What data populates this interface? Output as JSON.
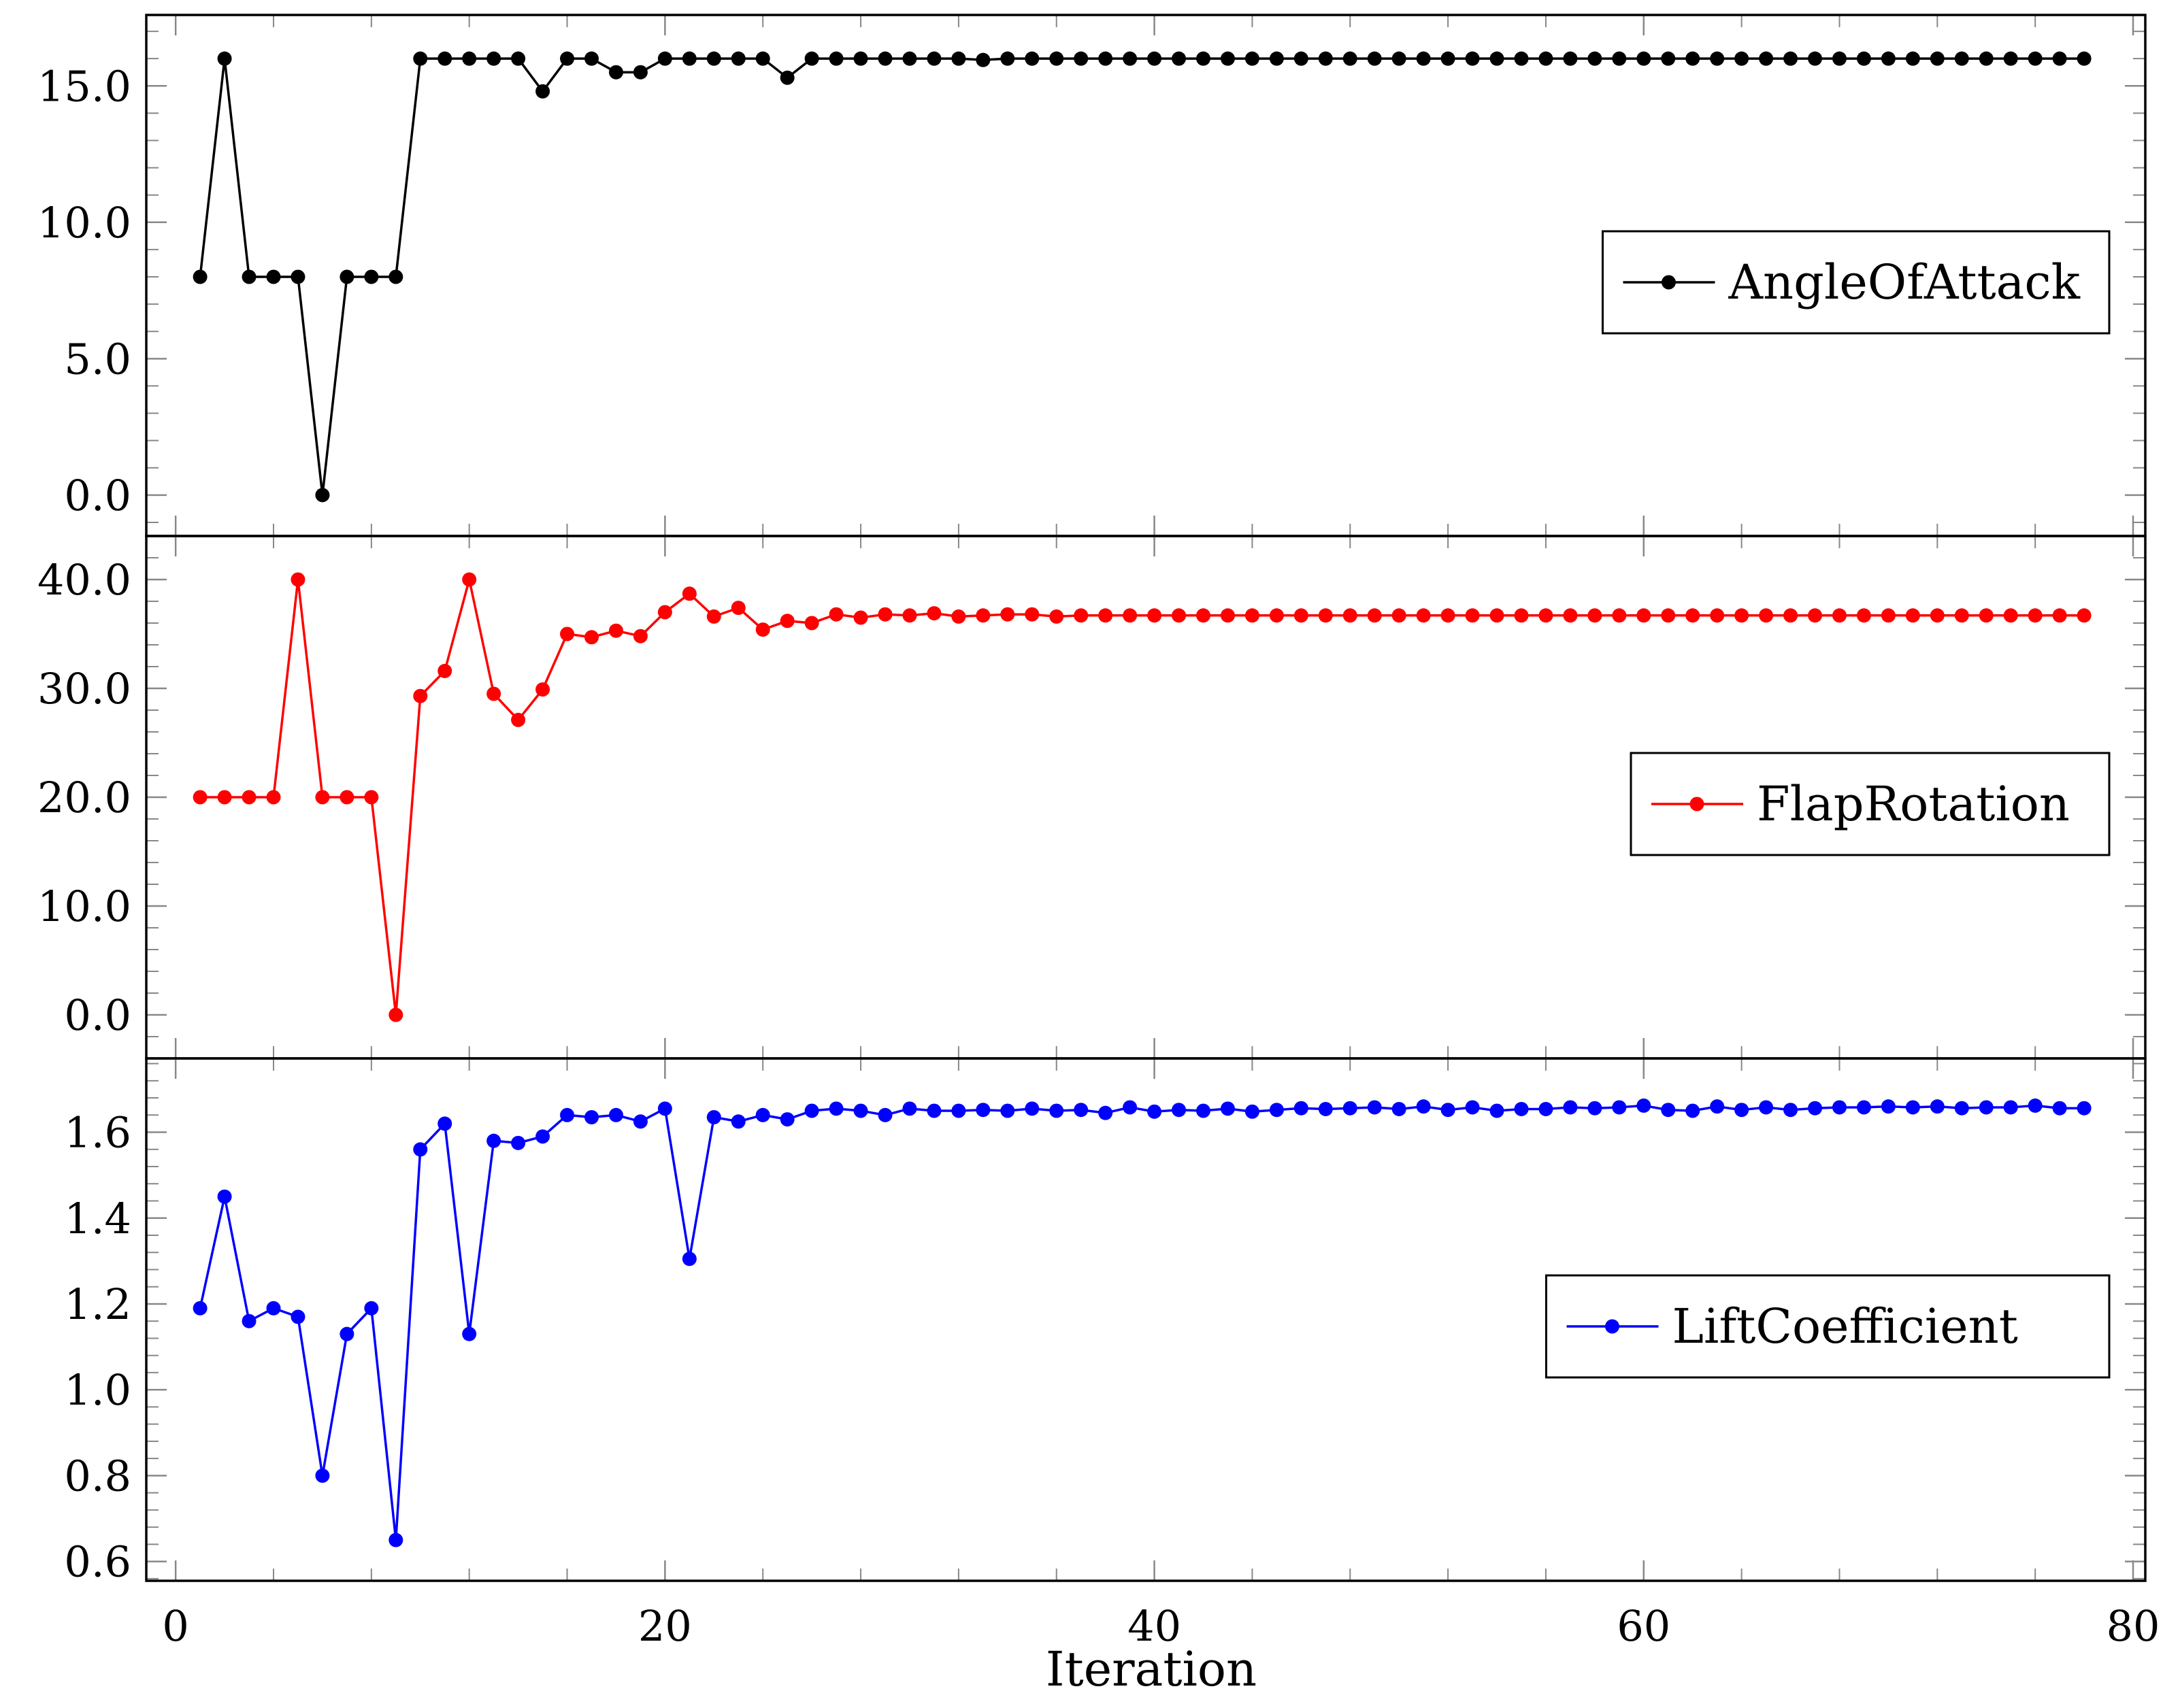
{
  "chart_data": {
    "type": "line",
    "xlabel": "Iteration",
    "xlim": [
      -1.2,
      80.5
    ],
    "xticks": [
      0,
      20,
      40,
      60,
      80
    ],
    "x": [
      1,
      2,
      3,
      4,
      5,
      6,
      7,
      8,
      9,
      10,
      11,
      12,
      13,
      14,
      15,
      16,
      17,
      18,
      19,
      20,
      21,
      22,
      23,
      24,
      25,
      26,
      27,
      28,
      29,
      30,
      31,
      32,
      33,
      34,
      35,
      36,
      37,
      38,
      39,
      40,
      41,
      42,
      43,
      44,
      45,
      46,
      47,
      48,
      49,
      50,
      51,
      52,
      53,
      54,
      55,
      56,
      57,
      58,
      59,
      60,
      61,
      62,
      63,
      64,
      65,
      66,
      67,
      68,
      69,
      70,
      71,
      72,
      73,
      74,
      75,
      76,
      77,
      78
    ],
    "grid": false,
    "panels": [
      {
        "series": [
          {
            "name": "AngleOfAttack",
            "color": "#000000",
            "values": [
              8,
              16,
              8,
              8,
              8,
              0,
              8,
              8,
              8,
              16,
              16,
              16,
              16,
              16,
              14.8,
              16,
              16,
              15.5,
              15.5,
              16,
              16,
              16,
              16,
              16,
              15.3,
              16,
              16,
              16,
              16,
              16,
              16,
              16,
              15.95,
              16,
              16,
              16,
              16,
              16,
              16,
              16,
              16,
              16,
              16,
              16,
              16,
              16,
              16,
              16,
              16,
              16,
              16,
              16,
              16,
              16,
              16,
              16,
              16,
              16,
              16,
              16,
              16,
              16,
              16,
              16,
              16,
              16,
              16,
              16,
              16,
              16,
              16,
              16,
              16,
              16,
              16,
              16,
              16,
              16
            ]
          }
        ],
        "ylim": [
          -1.5,
          17.6
        ],
        "yticks": [
          0,
          5,
          10,
          15
        ],
        "ytick_labels": [
          "0.0",
          "5.0",
          "10.0",
          "15.0"
        ],
        "legend_position": "right"
      },
      {
        "series": [
          {
            "name": "FlapRotation",
            "color": "#ff0000",
            "values": [
              20,
              20,
              20,
              20,
              40,
              20,
              20,
              20,
              0,
              29.3,
              31.6,
              40,
              29.5,
              27.1,
              29.9,
              35,
              34.7,
              35.3,
              34.8,
              37,
              38.7,
              36.6,
              37.4,
              35.4,
              36.2,
              36,
              36.8,
              36.5,
              36.8,
              36.7,
              36.9,
              36.6,
              36.7,
              36.8,
              36.8,
              36.6,
              36.7,
              36.7,
              36.7,
              36.7,
              36.7,
              36.7,
              36.7,
              36.7,
              36.7,
              36.7,
              36.7,
              36.7,
              36.7,
              36.7,
              36.7,
              36.7,
              36.7,
              36.7,
              36.7,
              36.7,
              36.7,
              36.7,
              36.7,
              36.7,
              36.7,
              36.7,
              36.7,
              36.7,
              36.7,
              36.7,
              36.7,
              36.7,
              36.7,
              36.7,
              36.7,
              36.7,
              36.7,
              36.7,
              36.7,
              36.7,
              36.7,
              36.7
            ]
          }
        ],
        "ylim": [
          -4,
          44
        ],
        "yticks": [
          0,
          10,
          20,
          30,
          40
        ],
        "ytick_labels": [
          "0.0",
          "10.0",
          "20.0",
          "30.0",
          "40.0"
        ],
        "legend_position": "right"
      },
      {
        "series": [
          {
            "name": "LiftCoefficient",
            "color": "#0000ff",
            "values": [
              1.19,
              1.45,
              1.16,
              1.19,
              1.17,
              0.8,
              1.13,
              1.19,
              0.65,
              1.56,
              1.62,
              1.13,
              1.58,
              1.575,
              1.59,
              1.64,
              1.635,
              1.64,
              1.625,
              1.655,
              1.305,
              1.635,
              1.625,
              1.64,
              1.63,
              1.65,
              1.655,
              1.65,
              1.64,
              1.655,
              1.65,
              1.65,
              1.652,
              1.65,
              1.655,
              1.65,
              1.652,
              1.645,
              1.658,
              1.648,
              1.652,
              1.65,
              1.655,
              1.648,
              1.652,
              1.656,
              1.654,
              1.656,
              1.658,
              1.654,
              1.66,
              1.652,
              1.658,
              1.65,
              1.654,
              1.654,
              1.658,
              1.656,
              1.658,
              1.662,
              1.652,
              1.65,
              1.66,
              1.652,
              1.658,
              1.652,
              1.656,
              1.658,
              1.658,
              1.66,
              1.658,
              1.66,
              1.656,
              1.658,
              1.658,
              1.662,
              1.656,
              1.656
            ]
          }
        ],
        "ylim": [
          0.555,
          1.772
        ],
        "yticks": [
          0.6,
          0.8,
          1.0,
          1.2,
          1.4,
          1.6
        ],
        "ytick_labels": [
          "0.6",
          "0.8",
          "1.0",
          "1.2",
          "1.4",
          "1.6"
        ],
        "legend_position": "right"
      }
    ]
  }
}
